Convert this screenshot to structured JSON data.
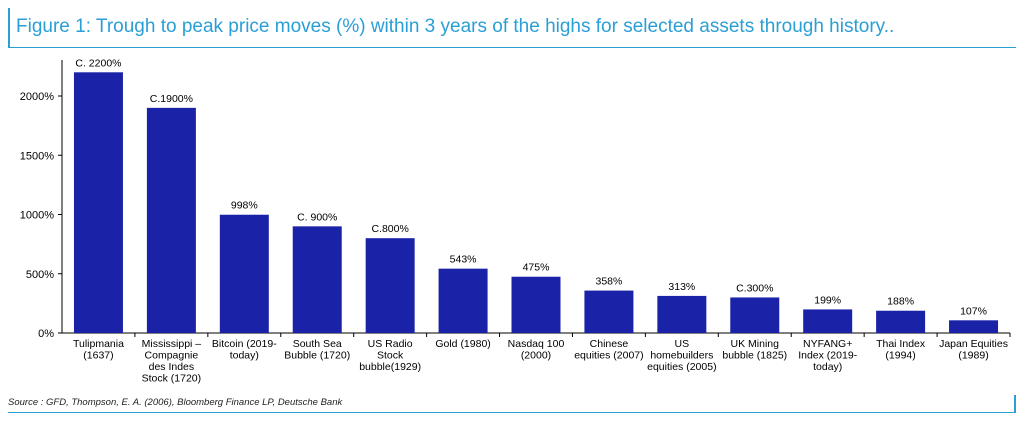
{
  "figure": {
    "title": "Figure 1: Trough to peak price moves (%) within 3 years of the highs for selected assets through history..",
    "source": "Source : GFD, Thompson, E. A. (2006), Bloomberg Finance LP, Deutsche Bank"
  },
  "chart_data": {
    "type": "bar",
    "title": "",
    "xlabel": "",
    "ylabel": "",
    "ylim": [
      0,
      2300
    ],
    "yticks": [
      0,
      500,
      1000,
      1500,
      2000
    ],
    "ytick_labels": [
      "0%",
      "500%",
      "1000%",
      "1500%",
      "2000%"
    ],
    "grid": false,
    "legend": "none",
    "bar_color": "#1a22a8",
    "categories": [
      [
        "Tulipmania",
        "(1637)"
      ],
      [
        "Mississippi –",
        "Compagnie",
        "des Indes",
        "Stock (1720)"
      ],
      [
        "Bitcoin (2019-",
        "today)"
      ],
      [
        "South Sea",
        "Bubble (1720)"
      ],
      [
        "US Radio",
        "Stock",
        "bubble(1929)"
      ],
      [
        "Gold (1980)"
      ],
      [
        "Nasdaq 100",
        "(2000)"
      ],
      [
        "Chinese",
        "equities (2007)"
      ],
      [
        "US",
        "homebuilders",
        "equities (2005)"
      ],
      [
        "UK Mining",
        "bubble (1825)"
      ],
      [
        "NYFANG+",
        "Index (2019-",
        "today)"
      ],
      [
        "Thai Index",
        "(1994)"
      ],
      [
        "Japan Equities",
        "(1989)"
      ]
    ],
    "values": [
      2200,
      1900,
      998,
      900,
      800,
      543,
      475,
      358,
      313,
      300,
      199,
      188,
      107
    ],
    "data_labels": [
      "C. 2200%",
      "C.1900%",
      "998%",
      "C. 900%",
      "C.800%",
      "543%",
      "475%",
      "358%",
      "313%",
      "C.300%",
      "199%",
      "188%",
      "107%"
    ]
  }
}
